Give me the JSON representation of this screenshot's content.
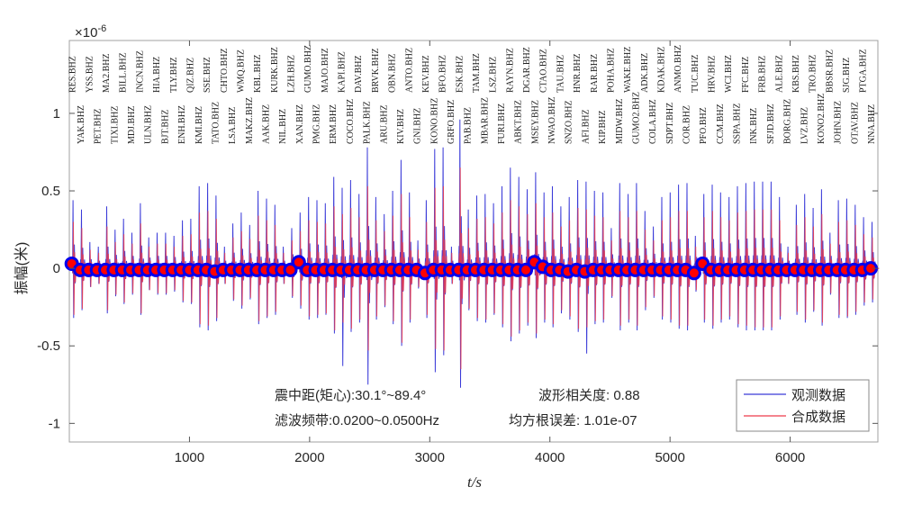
{
  "chart_data": {
    "type": "line",
    "title": "",
    "xlabel": "t/s",
    "ylabel": "振幅(米)",
    "y_exponent_label": "×10",
    "y_exponent": "-6",
    "xlim": [
      0,
      6730
    ],
    "ylim": [
      -1.12,
      1.47
    ],
    "x_ticks": [
      1000,
      2000,
      3000,
      4000,
      5000,
      6000
    ],
    "y_ticks": [
      -1,
      -0.5,
      0,
      0.5,
      1
    ],
    "y_tick_labels": [
      "-1",
      "-0.5",
      "0",
      "0.5",
      "1"
    ],
    "grid": false,
    "legend": {
      "placement": "bottom-right",
      "entries": [
        {
          "name": "观测数据",
          "color": "#3a3ad8"
        },
        {
          "name": "合成数据",
          "color": "#ee3b4b"
        }
      ]
    },
    "annotations": {
      "distance": "震中距(矩心):30.1°~89.4°",
      "band": "滤波频带:0.0200~0.0500Hz",
      "correlation": "波形相关度: 0.88",
      "rms": "均方根误差: 1.01e-07"
    },
    "marker_style": {
      "fill": "#ff0000",
      "edge": "#0000ee"
    },
    "station_onsets": [
      20,
      90,
      160,
      230,
      300,
      370,
      440,
      510,
      580,
      650,
      720,
      790,
      860,
      930,
      1000,
      1070,
      1140,
      1210,
      1280,
      1350,
      1420,
      1490,
      1560,
      1630,
      1700,
      1770,
      1840,
      1910,
      1980,
      2050,
      2120,
      2190,
      2260,
      2330,
      2400,
      2470,
      2540,
      2610,
      2680,
      2750,
      2820,
      2890,
      2960,
      3030,
      3100,
      3170,
      3240,
      3310,
      3380,
      3450,
      3520,
      3590,
      3660,
      3730,
      3800,
      3870,
      3940,
      4010,
      4080,
      4150,
      4220,
      4290,
      4360,
      4430,
      4500,
      4570,
      4640,
      4710,
      4780,
      4850,
      4920,
      4990,
      5060,
      5130,
      5200,
      5270,
      5340,
      5410,
      5480,
      5550,
      5620,
      5690,
      5760,
      5830,
      5900,
      5970,
      6040,
      6110,
      6180,
      6250,
      6320,
      6390,
      6460,
      6530,
      6600,
      6670
    ],
    "station_labels": [
      "RES.BHZ",
      "YAK.BHZ",
      "YSS.BHZ",
      "PET.BHZ",
      "MA2.BHZ",
      "TIXI.BHZ",
      "BILL.BHZ",
      "MDJ.BHZ",
      "INCN.BHZ",
      "ULN.BHZ",
      "HIA.BHZ",
      "BJT.BHZ",
      "TLY.BHZ",
      "ENH.BHZ",
      "QIZ.BHZ",
      "KMI.BHZ",
      "SSE.BHZ",
      "TATO.BHZ",
      "CHTO.BHZ",
      "LSA.BHZ",
      "WMQ.BHZ",
      "MAKZ.BHZ",
      "KBL.BHZ",
      "AAK.BHZ",
      "KURK.BHZ",
      "NIL.BHZ",
      "LZH.BHZ",
      "XAN.BHZ",
      "GUMO.BHZ",
      "PMG.BHZ",
      "MAJO.BHZ",
      "ERM.BHZ",
      "KAPI.BHZ",
      "COCO.BHZ",
      "DAV.BHZ",
      "PALK.BHZ",
      "BRVK.BHZ",
      "ARU.BHZ",
      "OBN.BHZ",
      "KIV.BHZ",
      "ANTO.BHZ",
      "GNI.BHZ",
      "KEV.BHZ",
      "KONO.BHZ",
      "BFO.BHZ",
      "GRFO.BHZ",
      "ESK.BHZ",
      "PAB.BHZ",
      "TAM.BHZ",
      "MBAR.BHZ",
      "LSZ.BHZ",
      "FURI.BHZ",
      "RAYN.BHZ",
      "ABKT.BHZ",
      "DGAR.BHZ",
      "MSEY.BHZ",
      "CTAO.BHZ",
      "NWAO.BHZ",
      "TAU.BHZ",
      "SNZO.BHZ",
      "HNR.BHZ",
      "AFI.BHZ",
      "RAR.BHZ",
      "KIP.BHZ",
      "POHA.BHZ",
      "MIDW.BHZ",
      "WAKE.BHZ",
      "GUMO2.BHZ",
      "ADK.BHZ",
      "COLA.BHZ",
      "KDAK.BHZ",
      "SDPT.BHZ",
      "ANMO.BHZ",
      "COR.BHZ",
      "TUC.BHZ",
      "PFO.BHZ",
      "HRV.BHZ",
      "CCM.BHZ",
      "WCI.BHZ",
      "SSPA.BHZ",
      "FFC.BHZ",
      "INK.BHZ",
      "FRB.BHZ",
      "SFJD.BHZ",
      "ALE.BHZ",
      "BORG.BHZ",
      "KBS.BHZ",
      "LVZ.BHZ",
      "TRO.BHZ",
      "KONO2.BHZ",
      "BBSR.BHZ",
      "JOHN.BHZ",
      "SJG.BHZ",
      "OTAV.BHZ",
      "PTGA.BHZ",
      "NNA.BHZ"
    ],
    "series": [
      {
        "name": "观测数据",
        "peak": [
          0.44,
          0.38,
          0.17,
          0.14,
          0.4,
          0.25,
          0.32,
          0.23,
          0.42,
          0.2,
          0.23,
          0.23,
          0.21,
          0.31,
          0.32,
          0.53,
          0.55,
          0.47,
          0.14,
          0.29,
          0.36,
          0.28,
          0.5,
          0.45,
          0.41,
          0.14,
          0.26,
          0.36,
          0.46,
          0.44,
          0.42,
          0.59,
          0.52,
          0.57,
          0.48,
          0.78,
          0.46,
          0.35,
          0.5,
          0.7,
          0.49,
          0.18,
          0.44,
          0.77,
          0.78,
          0.14,
          0.96,
          0.38,
          0.47,
          0.48,
          0.42,
          0.53,
          0.65,
          0.59,
          0.51,
          0.62,
          0.49,
          0.53,
          0.4,
          0.46,
          0.57,
          0.56,
          0.5,
          0.49,
          0.26,
          0.55,
          0.48,
          0.55,
          0.37,
          0.27,
          0.46,
          0.49,
          0.54,
          0.55,
          0.21,
          0.48,
          0.54,
          0.49,
          0.46,
          0.53,
          0.55,
          0.56,
          0.56,
          0.56,
          0.46,
          0.14,
          0.41,
          0.48,
          0.39,
          0.51,
          0.23,
          0.44,
          0.45,
          0.41,
          0.33,
          0.3
        ],
        "trough": [
          -0.32,
          -0.27,
          -0.12,
          -0.1,
          -0.29,
          -0.18,
          -0.23,
          -0.17,
          -0.3,
          -0.14,
          -0.17,
          -0.17,
          -0.15,
          -0.22,
          -0.23,
          -0.38,
          -0.4,
          -0.34,
          -0.1,
          -0.21,
          -0.26,
          -0.2,
          -0.36,
          -0.32,
          -0.3,
          -0.1,
          -0.19,
          -0.26,
          -0.33,
          -0.32,
          -0.3,
          -0.42,
          -0.63,
          -0.41,
          -0.35,
          -0.75,
          -0.33,
          -0.25,
          -0.36,
          -0.5,
          -0.35,
          -0.13,
          -0.32,
          -0.67,
          -0.56,
          -0.1,
          -0.77,
          -0.27,
          -0.34,
          -0.35,
          -0.3,
          -0.38,
          -0.47,
          -0.42,
          -0.37,
          -0.45,
          -0.35,
          -0.38,
          -0.29,
          -0.33,
          -0.41,
          -0.55,
          -0.36,
          -0.35,
          -0.19,
          -0.4,
          -0.35,
          -0.4,
          -0.27,
          -0.19,
          -0.33,
          -0.35,
          -0.39,
          -0.4,
          -0.15,
          -0.35,
          -0.39,
          -0.35,
          -0.33,
          -0.38,
          -0.4,
          -0.4,
          -0.4,
          -0.4,
          -0.33,
          -0.1,
          -0.3,
          -0.35,
          -0.28,
          -0.37,
          -0.17,
          -0.32,
          -0.32,
          -0.3,
          -0.24,
          -0.22
        ]
      },
      {
        "name": "合成数据",
        "amplitude": [
          0.3,
          0.26,
          0.12,
          0.1,
          0.27,
          0.17,
          0.22,
          0.16,
          0.29,
          0.14,
          0.16,
          0.16,
          0.14,
          0.21,
          0.22,
          0.36,
          0.37,
          0.32,
          0.1,
          0.2,
          0.24,
          0.19,
          0.34,
          0.31,
          0.28,
          0.1,
          0.18,
          0.24,
          0.31,
          0.3,
          0.29,
          0.4,
          0.35,
          0.39,
          0.33,
          0.53,
          0.31,
          0.24,
          0.34,
          0.48,
          0.33,
          0.12,
          0.3,
          0.52,
          0.53,
          0.1,
          0.65,
          0.26,
          0.32,
          0.33,
          0.29,
          0.36,
          0.44,
          0.4,
          0.35,
          0.42,
          0.33,
          0.36,
          0.27,
          0.31,
          0.39,
          0.38,
          0.34,
          0.33,
          0.18,
          0.37,
          0.33,
          0.37,
          0.25,
          0.18,
          0.31,
          0.33,
          0.37,
          0.37,
          0.14,
          0.33,
          0.37,
          0.33,
          0.31,
          0.36,
          0.37,
          0.38,
          0.38,
          0.38,
          0.31,
          0.1,
          0.28,
          0.33,
          0.27,
          0.35,
          0.16,
          0.3,
          0.31,
          0.28,
          0.22,
          0.2
        ]
      },
      {
        "name": "markers",
        "values": [
          0.03,
          -0.01,
          -0.01,
          -0.01,
          -0.01,
          -0.01,
          -0.01,
          -0.01,
          -0.01,
          -0.01,
          -0.01,
          -0.01,
          -0.01,
          -0.01,
          -0.01,
          -0.01,
          -0.01,
          -0.02,
          -0.01,
          -0.01,
          -0.01,
          -0.01,
          -0.01,
          -0.01,
          -0.01,
          -0.01,
          -0.01,
          0.04,
          -0.01,
          -0.01,
          -0.01,
          -0.01,
          -0.01,
          -0.01,
          -0.01,
          -0.01,
          -0.01,
          -0.01,
          -0.01,
          -0.01,
          -0.01,
          -0.01,
          -0.03,
          -0.01,
          -0.01,
          -0.01,
          -0.01,
          -0.01,
          -0.01,
          -0.01,
          -0.01,
          -0.01,
          -0.01,
          -0.01,
          -0.01,
          0.04,
          0.01,
          -0.01,
          -0.01,
          -0.02,
          -0.01,
          -0.02,
          -0.01,
          -0.01,
          -0.01,
          -0.01,
          -0.01,
          -0.01,
          -0.01,
          -0.01,
          -0.01,
          -0.01,
          -0.01,
          -0.01,
          -0.03,
          0.03,
          -0.01,
          -0.01,
          -0.01,
          -0.01,
          -0.01,
          -0.01,
          -0.01,
          -0.01,
          -0.01,
          -0.01,
          -0.01,
          -0.01,
          -0.01,
          -0.01,
          -0.01,
          -0.01,
          -0.01,
          -0.01,
          -0.01,
          0.0
        ]
      }
    ]
  }
}
